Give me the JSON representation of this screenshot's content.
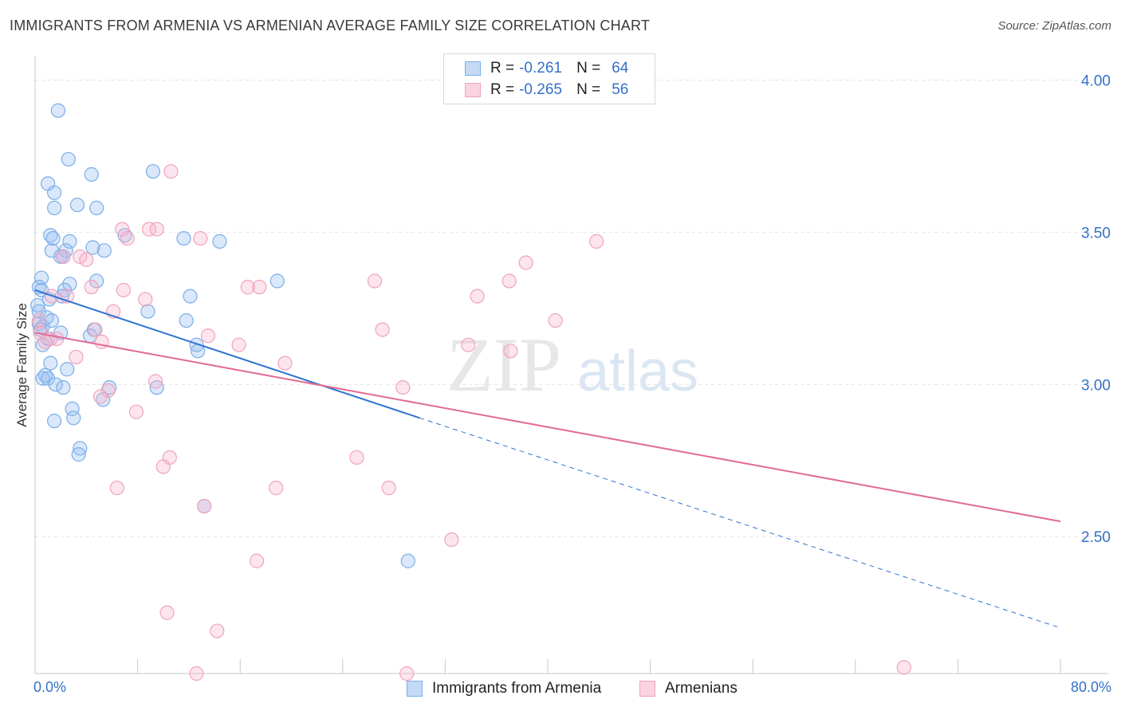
{
  "title": "IMMIGRANTS FROM ARMENIA VS ARMENIAN AVERAGE FAMILY SIZE CORRELATION CHART",
  "source": "Source: ZipAtlas.com",
  "watermark": {
    "zip": "ZIP",
    "atlas": "atlas"
  },
  "legend": {
    "rows": [
      {
        "r_label": "R =",
        "r_value": "-0.261",
        "n_label": "N =",
        "n_value": "64",
        "color": "#7aaee8"
      },
      {
        "r_label": "R =",
        "r_value": "-0.265",
        "n_label": "N =",
        "n_value": "56",
        "color": "#f0a3bd"
      }
    ]
  },
  "bottom_legend": [
    {
      "label": "Immigrants from Armenia",
      "color": "#7aaee8"
    },
    {
      "label": "Armenians",
      "color": "#f0a3bd"
    }
  ],
  "x_axis": {
    "left_label": "0.0%",
    "right_label": "80.0%"
  },
  "y_axis": {
    "label": "Average Family Size"
  },
  "chart_data": {
    "type": "scatter",
    "title": "IMMIGRANTS FROM ARMENIA VS ARMENIAN AVERAGE FAMILY SIZE CORRELATION CHART",
    "xlabel": "",
    "ylabel": "Average Family Size",
    "xlim": [
      0,
      80
    ],
    "ylim": [
      2.05,
      4.08
    ],
    "y_ticks": [
      {
        "value": 2.5,
        "label": "2.50"
      },
      {
        "value": 3.0,
        "label": "3.00"
      },
      {
        "value": 3.5,
        "label": "3.50"
      },
      {
        "value": 4.0,
        "label": "4.00"
      }
    ],
    "grid": true,
    "legend_placement": "top-center",
    "series": [
      {
        "name": "Immigrants from Armenia",
        "color": "#7aaee8",
        "line_color": "#2f72d0",
        "trend": {
          "x_start": 0,
          "y_start": 3.31,
          "x_solid_end": 30,
          "y_solid_end": 2.89,
          "x_dash_end": 80,
          "y_dash_end": 2.2
        },
        "points": [
          [
            1.8,
            3.9
          ],
          [
            2.6,
            3.74
          ],
          [
            1.0,
            3.66
          ],
          [
            4.4,
            3.69
          ],
          [
            9.2,
            3.7
          ],
          [
            1.5,
            3.63
          ],
          [
            3.3,
            3.59
          ],
          [
            1.5,
            3.58
          ],
          [
            4.8,
            3.58
          ],
          [
            1.2,
            3.49
          ],
          [
            1.4,
            3.48
          ],
          [
            2.7,
            3.47
          ],
          [
            11.6,
            3.48
          ],
          [
            14.4,
            3.47
          ],
          [
            7.0,
            3.49
          ],
          [
            1.3,
            3.44
          ],
          [
            2.4,
            3.44
          ],
          [
            4.5,
            3.45
          ],
          [
            5.4,
            3.44
          ],
          [
            2.0,
            3.42
          ],
          [
            2.2,
            3.42
          ],
          [
            0.5,
            3.35
          ],
          [
            0.3,
            3.32
          ],
          [
            2.7,
            3.33
          ],
          [
            4.8,
            3.34
          ],
          [
            18.9,
            3.34
          ],
          [
            2.3,
            3.31
          ],
          [
            2.1,
            3.29
          ],
          [
            1.1,
            3.28
          ],
          [
            12.1,
            3.29
          ],
          [
            0.2,
            3.26
          ],
          [
            0.3,
            3.24
          ],
          [
            8.8,
            3.24
          ],
          [
            0.9,
            3.22
          ],
          [
            11.8,
            3.21
          ],
          [
            0.3,
            3.2
          ],
          [
            0.6,
            3.19
          ],
          [
            0.4,
            3.18
          ],
          [
            2.0,
            3.17
          ],
          [
            4.6,
            3.18
          ],
          [
            4.3,
            3.16
          ],
          [
            1.0,
            3.15
          ],
          [
            0.6,
            3.13
          ],
          [
            12.6,
            3.13
          ],
          [
            12.7,
            3.11
          ],
          [
            1.2,
            3.07
          ],
          [
            0.6,
            3.02
          ],
          [
            0.8,
            3.03
          ],
          [
            1.0,
            3.02
          ],
          [
            1.6,
            3.0
          ],
          [
            2.2,
            2.99
          ],
          [
            5.8,
            2.99
          ],
          [
            9.5,
            2.99
          ],
          [
            5.3,
            2.95
          ],
          [
            2.9,
            2.92
          ],
          [
            3.0,
            2.89
          ],
          [
            1.5,
            2.88
          ],
          [
            3.5,
            2.79
          ],
          [
            3.4,
            2.77
          ],
          [
            13.2,
            2.6
          ],
          [
            29.1,
            2.42
          ],
          [
            0.5,
            3.31
          ],
          [
            1.3,
            3.21
          ],
          [
            2.5,
            3.05
          ]
        ]
      },
      {
        "name": "Armenians",
        "color": "#f0a3bd",
        "line_color": "#e26b94",
        "trend": {
          "x_start": 0,
          "y_start": 3.17,
          "x_end": 80,
          "y_end": 2.55
        },
        "points": [
          [
            10.6,
            3.7
          ],
          [
            6.8,
            3.51
          ],
          [
            8.9,
            3.51
          ],
          [
            9.5,
            3.51
          ],
          [
            7.2,
            3.48
          ],
          [
            12.9,
            3.48
          ],
          [
            43.8,
            3.47
          ],
          [
            2.2,
            3.42
          ],
          [
            3.5,
            3.42
          ],
          [
            4.0,
            3.41
          ],
          [
            38.3,
            3.4
          ],
          [
            26.5,
            3.34
          ],
          [
            37.0,
            3.34
          ],
          [
            16.6,
            3.32
          ],
          [
            17.5,
            3.32
          ],
          [
            4.4,
            3.32
          ],
          [
            6.9,
            3.31
          ],
          [
            1.3,
            3.29
          ],
          [
            2.5,
            3.29
          ],
          [
            8.6,
            3.28
          ],
          [
            34.5,
            3.29
          ],
          [
            6.1,
            3.24
          ],
          [
            40.6,
            3.21
          ],
          [
            0.3,
            3.21
          ],
          [
            27.1,
            3.18
          ],
          [
            4.7,
            3.18
          ],
          [
            13.5,
            3.16
          ],
          [
            1.7,
            3.15
          ],
          [
            1.2,
            3.15
          ],
          [
            0.8,
            3.14
          ],
          [
            5.2,
            3.14
          ],
          [
            15.9,
            3.13
          ],
          [
            33.8,
            3.13
          ],
          [
            37.1,
            3.11
          ],
          [
            3.2,
            3.09
          ],
          [
            19.5,
            3.07
          ],
          [
            9.4,
            3.01
          ],
          [
            28.7,
            2.99
          ],
          [
            5.7,
            2.98
          ],
          [
            5.1,
            2.96
          ],
          [
            7.9,
            2.91
          ],
          [
            10.5,
            2.76
          ],
          [
            25.1,
            2.76
          ],
          [
            10.0,
            2.73
          ],
          [
            6.4,
            2.66
          ],
          [
            18.8,
            2.66
          ],
          [
            27.6,
            2.66
          ],
          [
            13.2,
            2.6
          ],
          [
            32.5,
            2.49
          ],
          [
            17.3,
            2.42
          ],
          [
            10.3,
            2.25
          ],
          [
            14.2,
            2.19
          ],
          [
            12.6,
            2.05
          ],
          [
            29.0,
            2.05
          ],
          [
            67.8,
            2.07
          ],
          [
            0.4,
            3.17
          ]
        ]
      }
    ]
  }
}
